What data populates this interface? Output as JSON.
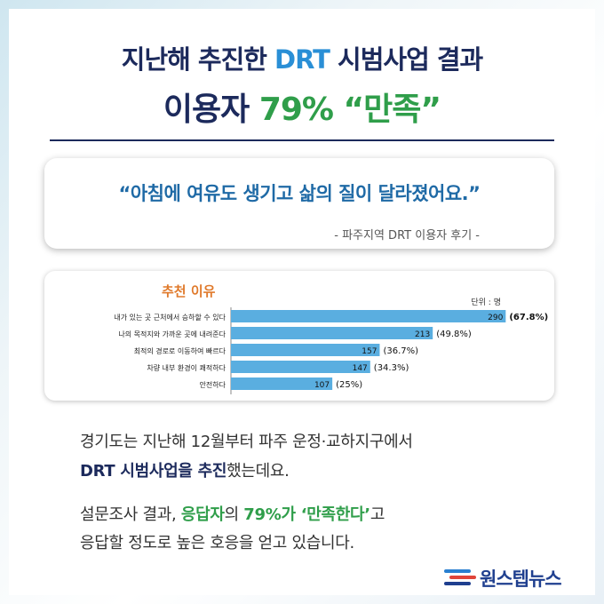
{
  "header": {
    "title_line1_pre": "지난해 추진한 ",
    "title_line1_accent": "DRT",
    "title_line1_post": " 시범사업 결과",
    "title_line2_pre": "이용자 ",
    "title_line2_accent": "79% “만족”"
  },
  "quote": {
    "text": "“아침에 여유도 생기고 삶의 질이 달라졌어요.”",
    "source": "- 파주지역 DRT 이용자 후기 -"
  },
  "chart_data": {
    "type": "bar",
    "title": "추천 이유",
    "unit": "단위 : 명",
    "categories": [
      "내가 있는 곳 근처에서 승하할 수 있다",
      "나의 목적지와 가까운 곳에 내려준다",
      "최적의 경로로 이동하여 빠르다",
      "차량 내부 환경이 쾌적하다",
      "안전하다"
    ],
    "values": [
      290,
      213,
      157,
      147,
      107
    ],
    "percent_labels": [
      "(67.8%)",
      "(49.8%)",
      "(36.7%)",
      "(34.3%)",
      "(25%)"
    ],
    "xlim": [
      0,
      300
    ],
    "bar_color": "#5aaee0"
  },
  "body": {
    "p1_line1": "경기도는 지난해 12월부터 파주 운정·교하지구에서",
    "p1_line2_bold": "DRT 시범사업을 추진",
    "p1_line2_rest": "했는데요.",
    "p2_line1_pre": "설문조사 결과, ",
    "p2_line1_green1": "응답자",
    "p2_line1_mid": "의 ",
    "p2_line1_green2": "79%가 ‘만족한다’",
    "p2_line1_post": "고",
    "p2_line2": "응답할 정도로 높은 호응을 얻고 있습니다."
  },
  "brand": {
    "name": "원스텝뉴스",
    "logo_icon": "onestep-logo-icon",
    "color": "#1f3f8f"
  }
}
